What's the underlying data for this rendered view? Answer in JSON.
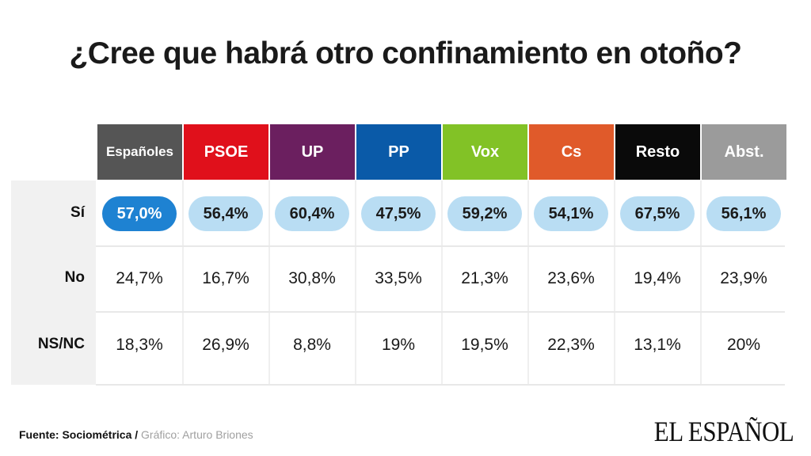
{
  "title": "¿Cree que habrá otro confinamiento en otoño?",
  "chart_data": {
    "type": "table",
    "title": "¿Cree que habrá otro confinamiento en otoño?",
    "columns": [
      "Españoles",
      "PSOE",
      "UP",
      "PP",
      "Vox",
      "Cs",
      "Resto",
      "Abst."
    ],
    "column_colors": [
      "#555555",
      "#e0101b",
      "#6b1f5f",
      "#0a5aa8",
      "#82c226",
      "#e05a2a",
      "#0a0a0a",
      "#9b9b9b"
    ],
    "rows": [
      {
        "label": "Sí",
        "values": [
          "57,0%",
          "56,4%",
          "60,4%",
          "47,5%",
          "59,2%",
          "54,1%",
          "67,5%",
          "56,1%"
        ]
      },
      {
        "label": "No",
        "values": [
          "24,7%",
          "16,7%",
          "30,8%",
          "33,5%",
          "21,3%",
          "23,6%",
          "19,4%",
          "23,9%"
        ]
      },
      {
        "label": "NS/NC",
        "values": [
          "18,3%",
          "26,9%",
          "8,8%",
          "19%",
          "19,5%",
          "22,3%",
          "13,1%",
          "20%"
        ]
      }
    ],
    "highlight_color": "#1e82d2",
    "pill_color": "#b9ddf3"
  },
  "footer": {
    "source_label": "Fuente: Sociométrica",
    "separator": " / ",
    "credit": "Gráfico: Arturo Briones"
  },
  "logo_text": "EL ESPAÑOL"
}
